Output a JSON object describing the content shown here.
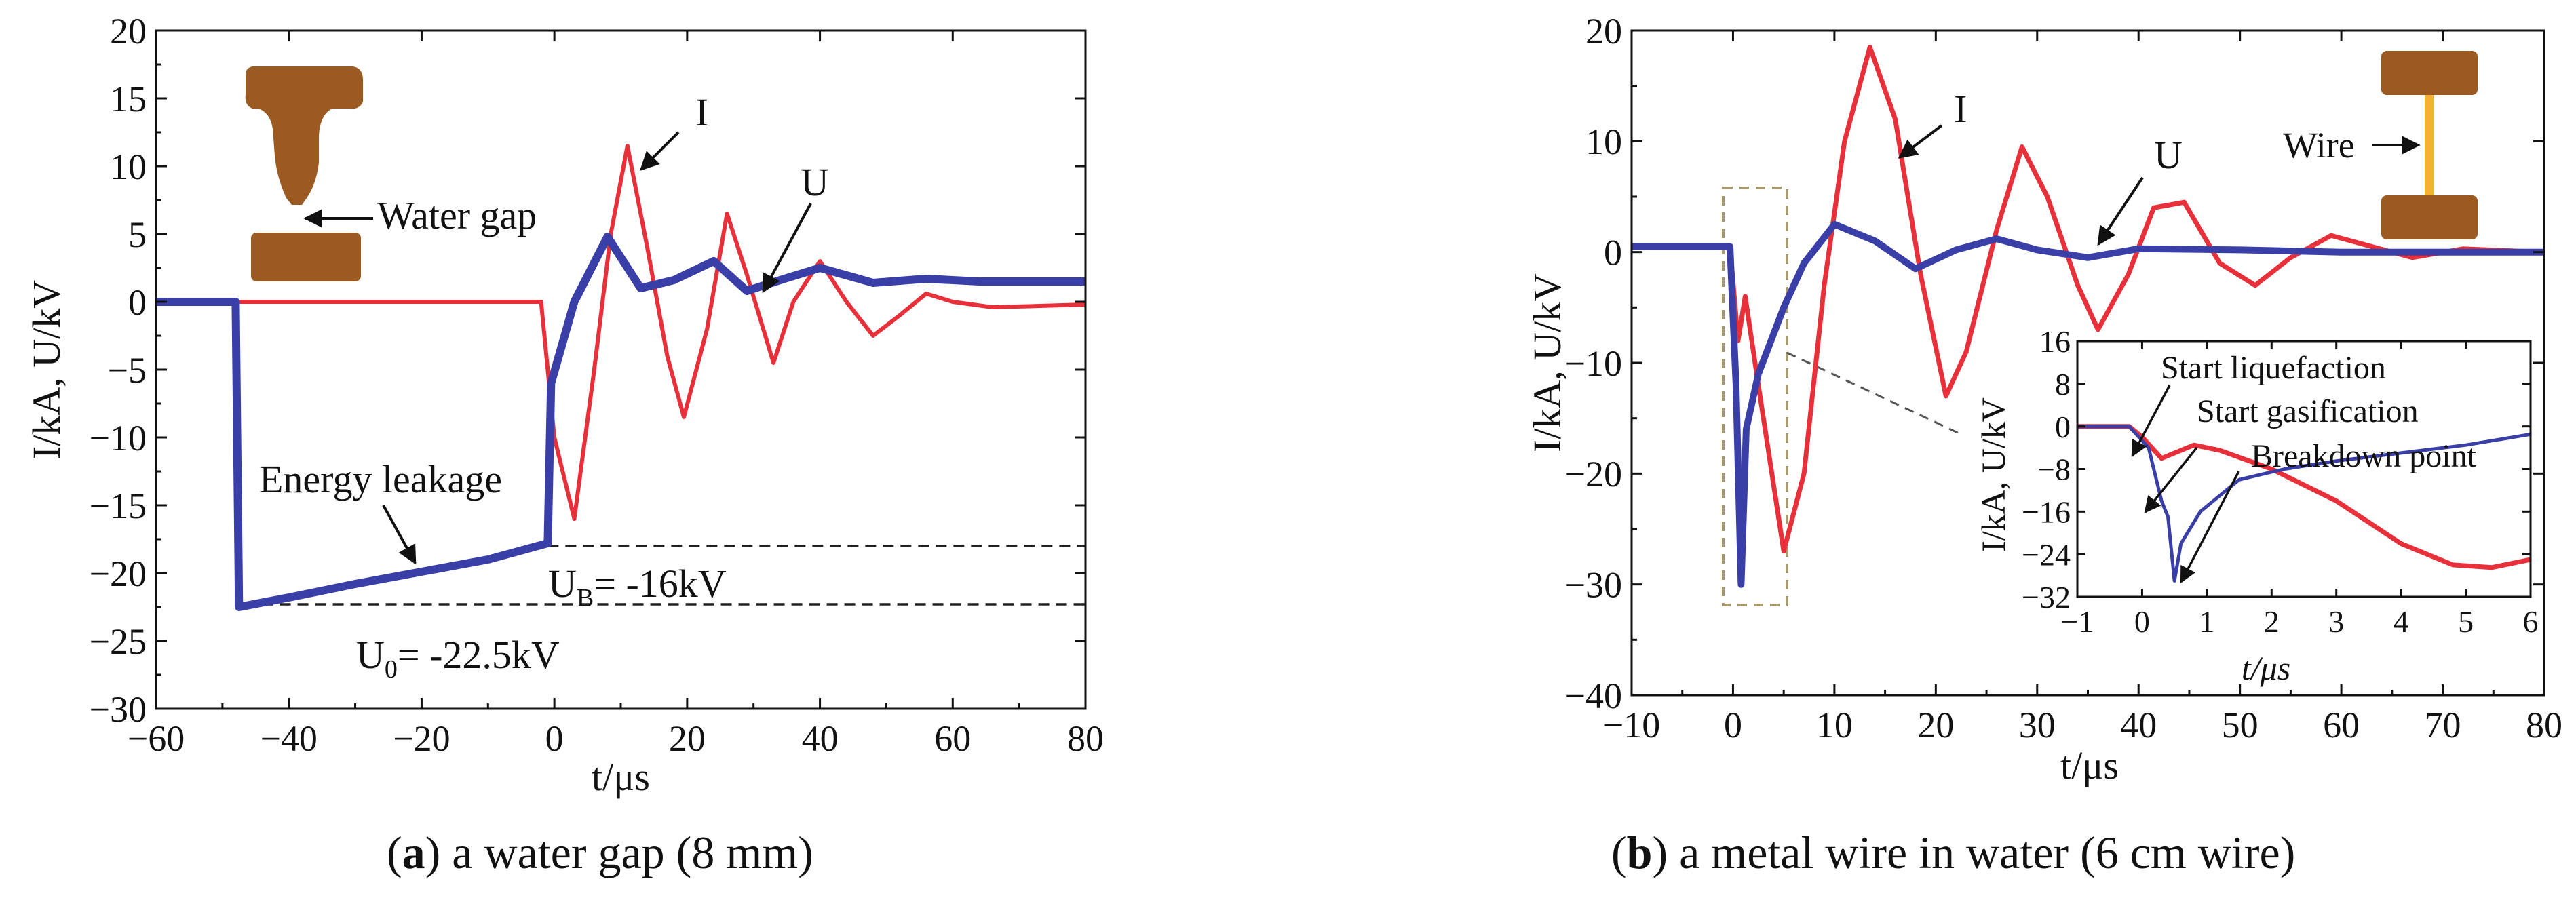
{
  "colors": {
    "current": "#e8303a",
    "voltage": "#3a3fa8",
    "copper": "#9a5a22",
    "wire": "#f2b233",
    "axis": "#111111",
    "dashed": "#222222",
    "inset_box": "#a89a70"
  },
  "chart_data": [
    {
      "id": "a",
      "type": "line",
      "xlabel": "t/μs",
      "ylabel": "I/kA,   U/kV",
      "xlim": [
        -60,
        80
      ],
      "ylim": [
        -30,
        20
      ],
      "xticks": [
        -60,
        -40,
        -20,
        0,
        20,
        40,
        60,
        80
      ],
      "yticks": [
        -30,
        -25,
        -20,
        -15,
        -10,
        -5,
        0,
        5,
        10,
        15,
        20
      ],
      "caption_letter": "a",
      "caption_rest": ") a water gap (8 mm)",
      "series": [
        {
          "name": "I",
          "color": "current",
          "points": [
            [
              -60,
              0
            ],
            [
              -2,
              0
            ],
            [
              0,
              -10
            ],
            [
              3,
              -16
            ],
            [
              6,
              -5
            ],
            [
              8.5,
              5
            ],
            [
              11,
              11.5
            ],
            [
              14,
              4
            ],
            [
              17,
              -4
            ],
            [
              19.5,
              -8.5
            ],
            [
              23,
              -2
            ],
            [
              26,
              6.5
            ],
            [
              29,
              2
            ],
            [
              33,
              -4.5
            ],
            [
              36,
              0
            ],
            [
              40,
              3
            ],
            [
              44,
              0
            ],
            [
              48,
              -2.5
            ],
            [
              52,
              -1
            ],
            [
              56,
              0.6
            ],
            [
              60,
              0
            ],
            [
              66,
              -0.4
            ],
            [
              80,
              -0.2
            ]
          ]
        },
        {
          "name": "U",
          "color": "voltage",
          "points": [
            [
              -60,
              0
            ],
            [
              -48,
              0
            ],
            [
              -47.5,
              -22.5
            ],
            [
              -40,
              -21.8
            ],
            [
              -30,
              -20.8
            ],
            [
              -20,
              -19.9
            ],
            [
              -10,
              -19
            ],
            [
              -1,
              -17.8
            ],
            [
              -0.5,
              -6
            ],
            [
              3,
              0
            ],
            [
              8,
              4.8
            ],
            [
              13,
              1
            ],
            [
              18,
              1.6
            ],
            [
              24,
              3
            ],
            [
              29,
              0.8
            ],
            [
              34,
              1.6
            ],
            [
              40,
              2.5
            ],
            [
              48,
              1.4
            ],
            [
              56,
              1.7
            ],
            [
              64,
              1.5
            ],
            [
              80,
              1.5
            ]
          ]
        }
      ],
      "labels": {
        "I": "I",
        "U": "U",
        "water_gap": "Water gap",
        "energy_leakage": "Energy leakage",
        "ub_sym": "U",
        "ub_sub": "B",
        "ub_val": "= -16kV",
        "u0_sym": "U",
        "u0_sub": "0",
        "u0_val": "= -22.5kV"
      },
      "reference_lines": [
        -18,
        -22.3
      ]
    },
    {
      "id": "b",
      "type": "line",
      "xlabel": "t/μs",
      "ylabel": "I/kA,   U/kV",
      "xlim": [
        -10,
        80
      ],
      "ylim": [
        -40,
        20
      ],
      "xticks": [
        -10,
        0,
        10,
        20,
        30,
        40,
        50,
        60,
        70,
        80
      ],
      "yticks": [
        -40,
        -30,
        -20,
        -10,
        0,
        10,
        20
      ],
      "caption_letter": "b",
      "caption_rest": ") a metal wire in water (6 cm wire)",
      "series": [
        {
          "name": "I",
          "color": "current",
          "points": [
            [
              -10,
              0.5
            ],
            [
              -0.3,
              0.5
            ],
            [
              0.5,
              -8
            ],
            [
              1.2,
              -4
            ],
            [
              2.5,
              -12
            ],
            [
              5,
              -27
            ],
            [
              7,
              -20
            ],
            [
              9,
              -3
            ],
            [
              11,
              10
            ],
            [
              13.5,
              18.5
            ],
            [
              16,
              12
            ],
            [
              18.5,
              -2
            ],
            [
              21,
              -13
            ],
            [
              23,
              -9
            ],
            [
              26,
              2
            ],
            [
              28.5,
              9.5
            ],
            [
              31,
              5
            ],
            [
              34,
              -3
            ],
            [
              36,
              -7
            ],
            [
              39,
              -2
            ],
            [
              41.5,
              4
            ],
            [
              44.5,
              4.5
            ],
            [
              48,
              -1
            ],
            [
              51.5,
              -3
            ],
            [
              55,
              -0.5
            ],
            [
              59,
              1.5
            ],
            [
              63,
              0.5
            ],
            [
              67,
              -0.5
            ],
            [
              72,
              0.3
            ],
            [
              80,
              0
            ]
          ]
        },
        {
          "name": "U",
          "color": "voltage",
          "points": [
            [
              -10,
              0.5
            ],
            [
              -0.3,
              0.5
            ],
            [
              0.3,
              -12
            ],
            [
              0.8,
              -30
            ],
            [
              1.3,
              -16
            ],
            [
              2.5,
              -11
            ],
            [
              5,
              -5
            ],
            [
              7,
              -1
            ],
            [
              10,
              2.5
            ],
            [
              14,
              1
            ],
            [
              18,
              -1.5
            ],
            [
              22,
              0.2
            ],
            [
              26,
              1.2
            ],
            [
              30,
              0.2
            ],
            [
              35,
              -0.5
            ],
            [
              40,
              0.3
            ],
            [
              50,
              0.2
            ],
            [
              60,
              0
            ],
            [
              80,
              0
            ]
          ]
        }
      ],
      "labels": {
        "I": "I",
        "U": "U",
        "wire": "Wire"
      },
      "inset": {
        "xlabel": "t/μs",
        "ylabel": "I/kA,   U/kV",
        "xlim": [
          -1,
          6
        ],
        "ylim": [
          -32,
          16
        ],
        "xticks": [
          -1,
          0,
          1,
          2,
          3,
          4,
          5,
          6
        ],
        "yticks": [
          -32,
          -24,
          -16,
          -8,
          0,
          8,
          16
        ],
        "series": [
          {
            "name": "I",
            "color": "current",
            "points": [
              [
                -1,
                0
              ],
              [
                -0.2,
                0
              ],
              [
                0,
                -2
              ],
              [
                0.3,
                -6
              ],
              [
                0.8,
                -3.5
              ],
              [
                1.2,
                -4.5
              ],
              [
                2,
                -8
              ],
              [
                3,
                -14
              ],
              [
                4,
                -22
              ],
              [
                4.8,
                -26
              ],
              [
                5.4,
                -26.5
              ],
              [
                6,
                -25
              ]
            ]
          },
          {
            "name": "U",
            "color": "voltage",
            "points": [
              [
                -1,
                0
              ],
              [
                -0.2,
                0
              ],
              [
                0.1,
                -4
              ],
              [
                0.3,
                -14
              ],
              [
                0.4,
                -17
              ],
              [
                0.5,
                -29
              ],
              [
                0.6,
                -22
              ],
              [
                0.9,
                -16
              ],
              [
                1.5,
                -10
              ],
              [
                2.2,
                -8
              ],
              [
                3,
                -6.5
              ],
              [
                4,
                -5
              ],
              [
                5,
                -3.5
              ],
              [
                6,
                -1.5
              ]
            ]
          }
        ],
        "annotations": {
          "liquefaction": "Start liquefaction",
          "gasification": "Start gasification",
          "breakdown": "Breakdown point"
        }
      }
    }
  ]
}
